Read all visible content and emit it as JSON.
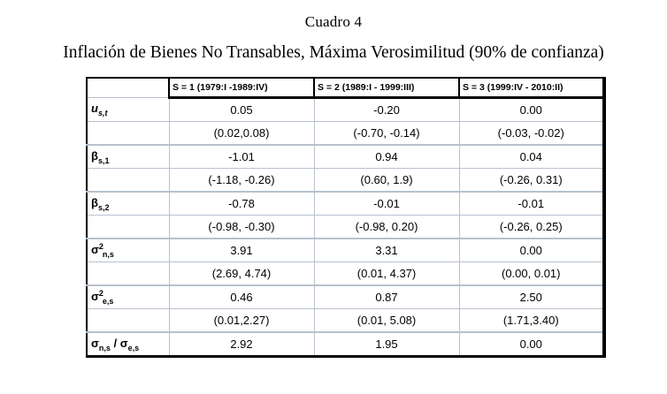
{
  "page": {
    "title": "Cuadro 4",
    "subtitle": "Inflación de Bienes No Transables, Máxima Verosimilitud (90% de confianza)"
  },
  "table": {
    "headers": [
      "S = 1 (1979:I -1989:IV)",
      "S = 2 (1989:I - 1999:III)",
      "S = 3 (1999:IV - 2010:II)"
    ],
    "labels": {
      "u": {
        "base": "u",
        "sub": "s,t"
      },
      "beta1": {
        "base": "β",
        "sub": "s,1"
      },
      "beta2": {
        "base": "β",
        "sub": "s,2"
      },
      "sigma_n": {
        "base": "σ",
        "sup": "2",
        "sub": "n,s"
      },
      "sigma_e": {
        "base": "σ",
        "sup": "2",
        "sub": "e,s"
      },
      "ratio": {
        "base1": "σ",
        "sub1": "n,s",
        "sep": " / ",
        "base2": "σ",
        "sub2": "e,s"
      }
    },
    "rows": {
      "u_est": [
        "0.05",
        "-0.20",
        "0.00"
      ],
      "u_ci": [
        "(0.02,0.08)",
        "(-0.70, -0.14)",
        "(-0.03, -0.02)"
      ],
      "beta1_est": [
        "-1.01",
        "0.94",
        "0.04"
      ],
      "beta1_ci": [
        "(-1.18, -0.26)",
        "(0.60, 1.9)",
        "(-0.26, 0.31)"
      ],
      "beta2_est": [
        "-0.78",
        "-0.01",
        "-0.01"
      ],
      "beta2_ci": [
        "(-0.98, -0.30)",
        "(-0.98, 0.20)",
        "(-0.26, 0.25)"
      ],
      "sigma_n_est": [
        "3.91",
        "3.31",
        "0.00"
      ],
      "sigma_n_ci": [
        "(2.69, 4.74)",
        "(0.01, 4.37)",
        "(0.00, 0.01)"
      ],
      "sigma_e_est": [
        "0.46",
        "0.87",
        "2.50"
      ],
      "sigma_e_ci": [
        "(0.01,2.27)",
        "(0.01, 5.08)",
        "(1.71,3.40)"
      ],
      "ratio_est": [
        "2.92",
        "1.95",
        "0.00"
      ]
    },
    "colors": {
      "frame": "#000000",
      "grid": "#b7c1ce",
      "text": "#000000",
      "background": "#ffffff"
    }
  }
}
